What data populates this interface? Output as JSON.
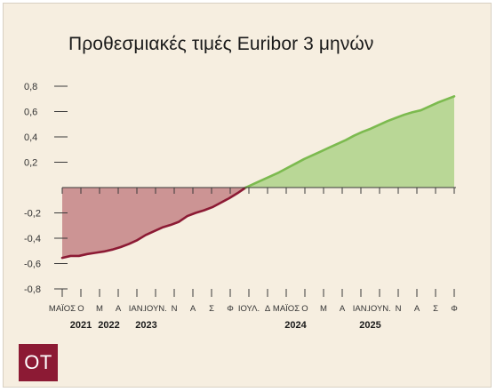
{
  "header": {
    "title": "Προθεσμιακές τιμές Euribor 3 μηνών"
  },
  "brand": {
    "logo_text": "ΟΤ",
    "color": "#8c1a34"
  },
  "colors": {
    "negative_fill": "#cc9494",
    "negative_line": "#8c1a34",
    "positive_fill": "#b9d796",
    "positive_line": "#7cba4f",
    "background": "#f6eee0"
  },
  "chart_data": {
    "type": "area",
    "title": "Προθεσμιακές τιμές Euribor 3 μηνών",
    "xlabel": "",
    "ylabel": "",
    "ylim": [
      -0.8,
      0.8
    ],
    "y_ticks": [
      0.8,
      0.6,
      0.4,
      0.2,
      -0.2,
      -0.4,
      -0.6,
      -0.8
    ],
    "y_tick_labels": [
      "0,8",
      "0,6",
      "0,4",
      "0,2",
      "-0,2",
      "-0,4",
      "-0,6",
      "-0,8"
    ],
    "grid": false,
    "x_tick_labels": [
      "ΜΑΪΟΣ",
      "Ο",
      "Μ",
      "Α",
      "ΙΑΝ.",
      "ΙΟΥΝ.",
      "Ν",
      "Α",
      "Σ",
      "Φ",
      "ΙΟΥΛ.",
      "Δ",
      "ΜΑΪΟΣ",
      "Ο",
      "Μ",
      "Α",
      "ΙΑΝ.",
      "ΙΟΥΝ.",
      "Ν",
      "Α",
      "Σ",
      "Φ"
    ],
    "year_labels": [
      {
        "label": "2021",
        "tick_index": 1
      },
      {
        "label": "2022",
        "tick_index": 2.5
      },
      {
        "label": "2023",
        "tick_index": 4.5
      },
      {
        "label": "2024",
        "tick_index": 12.5
      },
      {
        "label": "2025",
        "tick_index": 16.5
      }
    ],
    "series": [
      {
        "values": [
          -0.555,
          -0.54,
          -0.54,
          -0.525,
          -0.515,
          -0.505,
          -0.49,
          -0.47,
          -0.445,
          -0.415,
          -0.375,
          -0.345,
          -0.315,
          -0.295,
          -0.27,
          -0.225,
          -0.2,
          -0.18,
          -0.155,
          -0.12,
          -0.085,
          -0.045,
          0.0,
          0.03,
          0.06,
          0.09,
          0.12,
          0.155,
          0.19,
          0.225,
          0.255,
          0.285,
          0.315,
          0.345,
          0.375,
          0.41,
          0.44,
          0.465,
          0.495,
          0.525,
          0.55,
          0.575,
          0.595,
          0.61,
          0.64,
          0.67,
          0.695,
          0.72
        ]
      }
    ]
  }
}
